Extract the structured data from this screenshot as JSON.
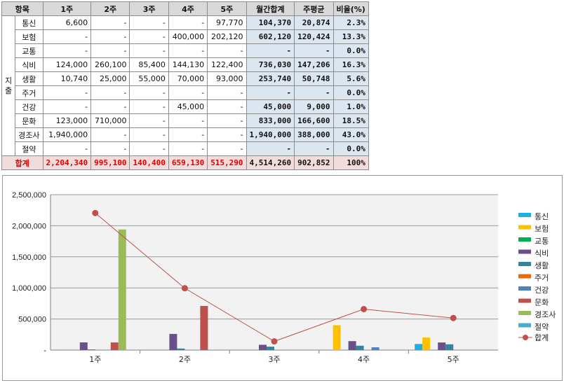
{
  "table": {
    "header": [
      "항목",
      "1주",
      "2주",
      "3주",
      "4주",
      "5주",
      "월간합계",
      "주평균",
      "비율(%)"
    ],
    "side_label": [
      "지",
      "출"
    ],
    "rows": [
      {
        "cat": "통신",
        "w": [
          "6,600",
          "-",
          "-",
          "-",
          "97,770"
        ],
        "sum": "104,370",
        "avg": "20,874",
        "pct": "2.3%"
      },
      {
        "cat": "보험",
        "w": [
          "-",
          "-",
          "-",
          "400,000",
          "202,120"
        ],
        "sum": "602,120",
        "avg": "120,424",
        "pct": "13.3%"
      },
      {
        "cat": "교통",
        "w": [
          "-",
          "-",
          "-",
          "-",
          "-"
        ],
        "sum": "-",
        "avg": "-",
        "pct": "0.0%"
      },
      {
        "cat": "식비",
        "w": [
          "124,000",
          "260,100",
          "85,400",
          "144,130",
          "122,400"
        ],
        "sum": "736,030",
        "avg": "147,206",
        "pct": "16.3%"
      },
      {
        "cat": "생활",
        "w": [
          "10,740",
          "25,000",
          "55,000",
          "70,000",
          "93,000"
        ],
        "sum": "253,740",
        "avg": "50,748",
        "pct": "5.6%"
      },
      {
        "cat": "주거",
        "w": [
          "-",
          "-",
          "-",
          "-",
          "-"
        ],
        "sum": "-",
        "avg": "-",
        "pct": "0.0%"
      },
      {
        "cat": "건강",
        "w": [
          "-",
          "-",
          "-",
          "45,000",
          "-"
        ],
        "sum": "45,000",
        "avg": "9,000",
        "pct": "1.0%"
      },
      {
        "cat": "문화",
        "w": [
          "123,000",
          "710,000",
          "-",
          "-",
          "-"
        ],
        "sum": "833,000",
        "avg": "166,600",
        "pct": "18.5%"
      },
      {
        "cat": "경조사",
        "w": [
          "1,940,000",
          "-",
          "-",
          "-",
          "-"
        ],
        "sum": "1,940,000",
        "avg": "388,000",
        "pct": "43.0%"
      },
      {
        "cat": "절약",
        "w": [
          "-",
          "-",
          "-",
          "-",
          "-"
        ],
        "sum": "-",
        "avg": "-",
        "pct": "0.0%"
      }
    ],
    "total": {
      "label": "합계",
      "w": [
        "2,204,340",
        "995,100",
        "140,400",
        "659,130",
        "515,290"
      ],
      "sum": "4,514,260",
      "avg": "902,852",
      "pct": "100%"
    }
  },
  "chart_data": {
    "type": "bar",
    "categories": [
      "1주",
      "2주",
      "3주",
      "4주",
      "5주"
    ],
    "ylim": [
      0,
      2500000
    ],
    "yticks": [
      "-",
      "500,000",
      "1,000,000",
      "1,500,000",
      "2,000,000",
      "2,500,000"
    ],
    "legend_position": "right",
    "series": [
      {
        "name": "통신",
        "color": "#1ab0e6",
        "values": [
          6600,
          0,
          0,
          0,
          97770
        ]
      },
      {
        "name": "보험",
        "color": "#ffc000",
        "values": [
          0,
          0,
          0,
          400000,
          202120
        ]
      },
      {
        "name": "교통",
        "color": "#00b050",
        "values": [
          0,
          0,
          0,
          0,
          0
        ]
      },
      {
        "name": "식비",
        "color": "#6a4f8a",
        "values": [
          124000,
          260100,
          85400,
          144130,
          122400
        ]
      },
      {
        "name": "생활",
        "color": "#31859c",
        "values": [
          10740,
          25000,
          55000,
          70000,
          93000
        ]
      },
      {
        "name": "주거",
        "color": "#e46c0a",
        "values": [
          0,
          0,
          0,
          0,
          0
        ]
      },
      {
        "name": "건강",
        "color": "#4f81bd",
        "values": [
          0,
          0,
          0,
          45000,
          0
        ]
      },
      {
        "name": "문화",
        "color": "#c0504d",
        "values": [
          123000,
          710000,
          0,
          0,
          0
        ]
      },
      {
        "name": "경조사",
        "color": "#9bbb59",
        "values": [
          1940000,
          0,
          0,
          0,
          0
        ]
      },
      {
        "name": "절약",
        "color": "#4bacc6",
        "values": [
          0,
          0,
          0,
          0,
          0
        ]
      }
    ],
    "line": {
      "name": "합계",
      "color": "#c0504d",
      "values": [
        2204340,
        995100,
        140400,
        659130,
        515290
      ]
    }
  }
}
